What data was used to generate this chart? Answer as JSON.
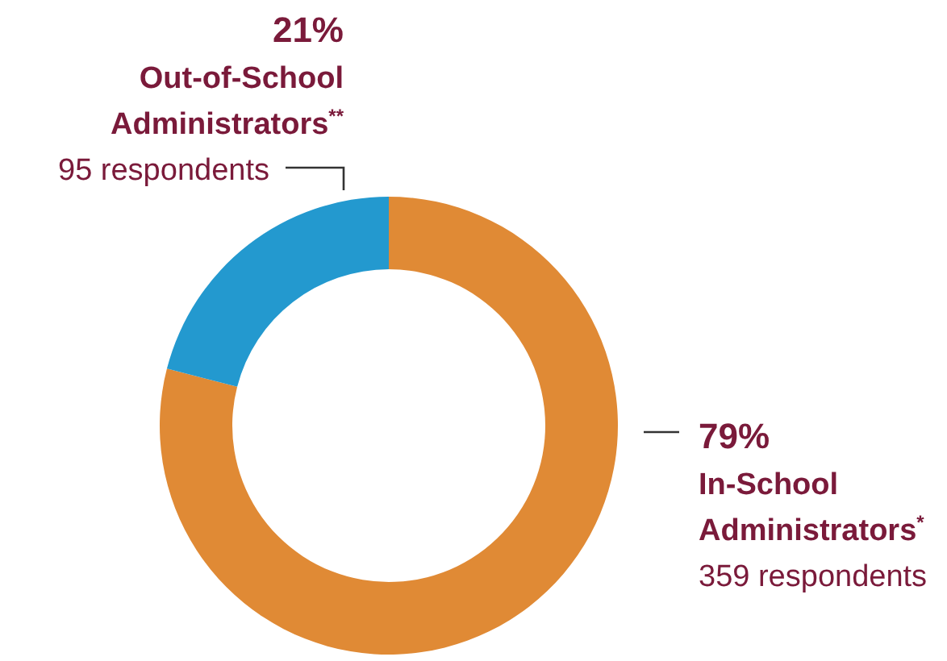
{
  "chart_data": {
    "type": "donut",
    "categories": [
      "In-School Administrators$^{*}$",
      "Out-of-School Administrators$^{**}$"
    ],
    "values": [
      79,
      21
    ],
    "colors": [
      "#e08a35",
      "#2399cf"
    ],
    "value_labels": [
      "79%",
      "21%"
    ],
    "annotations": [
      "359 respondents",
      "95 respondents"
    ]
  }
}
